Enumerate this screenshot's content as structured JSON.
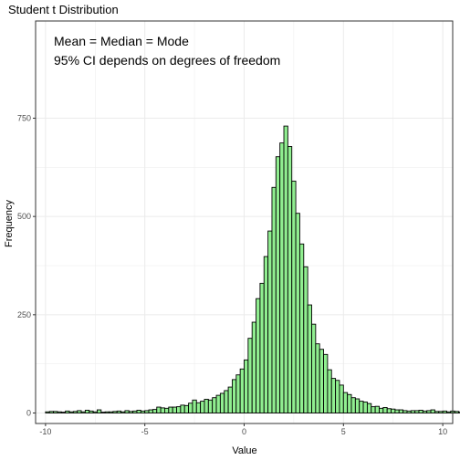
{
  "chart_data": {
    "type": "bar",
    "title": "Student t Distribution",
    "xlabel": "Value",
    "ylabel": "Frequency",
    "xlim": [
      -10.5,
      10.5
    ],
    "ylim": [
      0,
      800
    ],
    "x_ticks": [
      -10,
      -5,
      0,
      5,
      10
    ],
    "x_tick_labels": [
      "-10",
      "-5",
      "0",
      "5",
      "10"
    ],
    "y_ticks": [
      0,
      250,
      500,
      750
    ],
    "y_tick_labels": [
      "0",
      "250",
      "500",
      "750"
    ],
    "grid": true,
    "annotations": [
      "Mean = Median = Mode",
      "95% CI depends on degrees of freedom"
    ],
    "bin_width": 0.2,
    "bin_centers_start": -9.9,
    "bin_counts": [
      3,
      4,
      4,
      3,
      2,
      5,
      3,
      4,
      6,
      3,
      7,
      5,
      3,
      8,
      2,
      3,
      3,
      4,
      5,
      3,
      6,
      4,
      5,
      7,
      5,
      6,
      8,
      9,
      15,
      13,
      12,
      15,
      15,
      16,
      20,
      19,
      25,
      33,
      26,
      30,
      35,
      33,
      39,
      45,
      50,
      57,
      66,
      85,
      97,
      112,
      135,
      190,
      231,
      291,
      330,
      398,
      463,
      574,
      652,
      687,
      730,
      678,
      590,
      508,
      430,
      372,
      275,
      226,
      176,
      162,
      149,
      110,
      88,
      83,
      71,
      52,
      47,
      39,
      36,
      30,
      28,
      24,
      16,
      17,
      12,
      14,
      11,
      10,
      8,
      8,
      6,
      5,
      6,
      6,
      7,
      5,
      6,
      8,
      4,
      4,
      5,
      3,
      5,
      4,
      3
    ],
    "colors": {
      "bar_fill": "#90ee90",
      "bar_stroke": "#000000",
      "panel_border": "#333333",
      "grid": "#ebebeb"
    }
  }
}
